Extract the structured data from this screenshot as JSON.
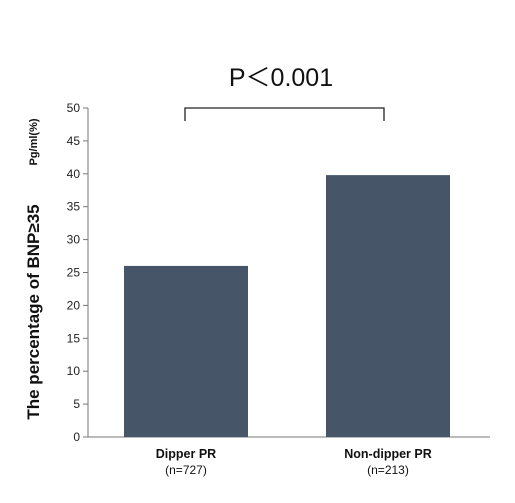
{
  "chart_data": {
    "type": "bar",
    "categories": [
      "Dipper PR",
      "Non-dipper PR"
    ],
    "category_sublabels": [
      "(n=727)",
      "(n=213)"
    ],
    "values": [
      26,
      39.8
    ],
    "ylabel": "The percentage of BNP≥35",
    "ylabel_unit": "Pg/ml(%)",
    "ylim": [
      0,
      50
    ],
    "yticks": [
      0,
      5,
      10,
      15,
      20,
      25,
      30,
      35,
      40,
      45,
      50
    ],
    "annotation": "P＜0.001",
    "bar_color": "#465568",
    "grid": false,
    "legend": "none"
  }
}
